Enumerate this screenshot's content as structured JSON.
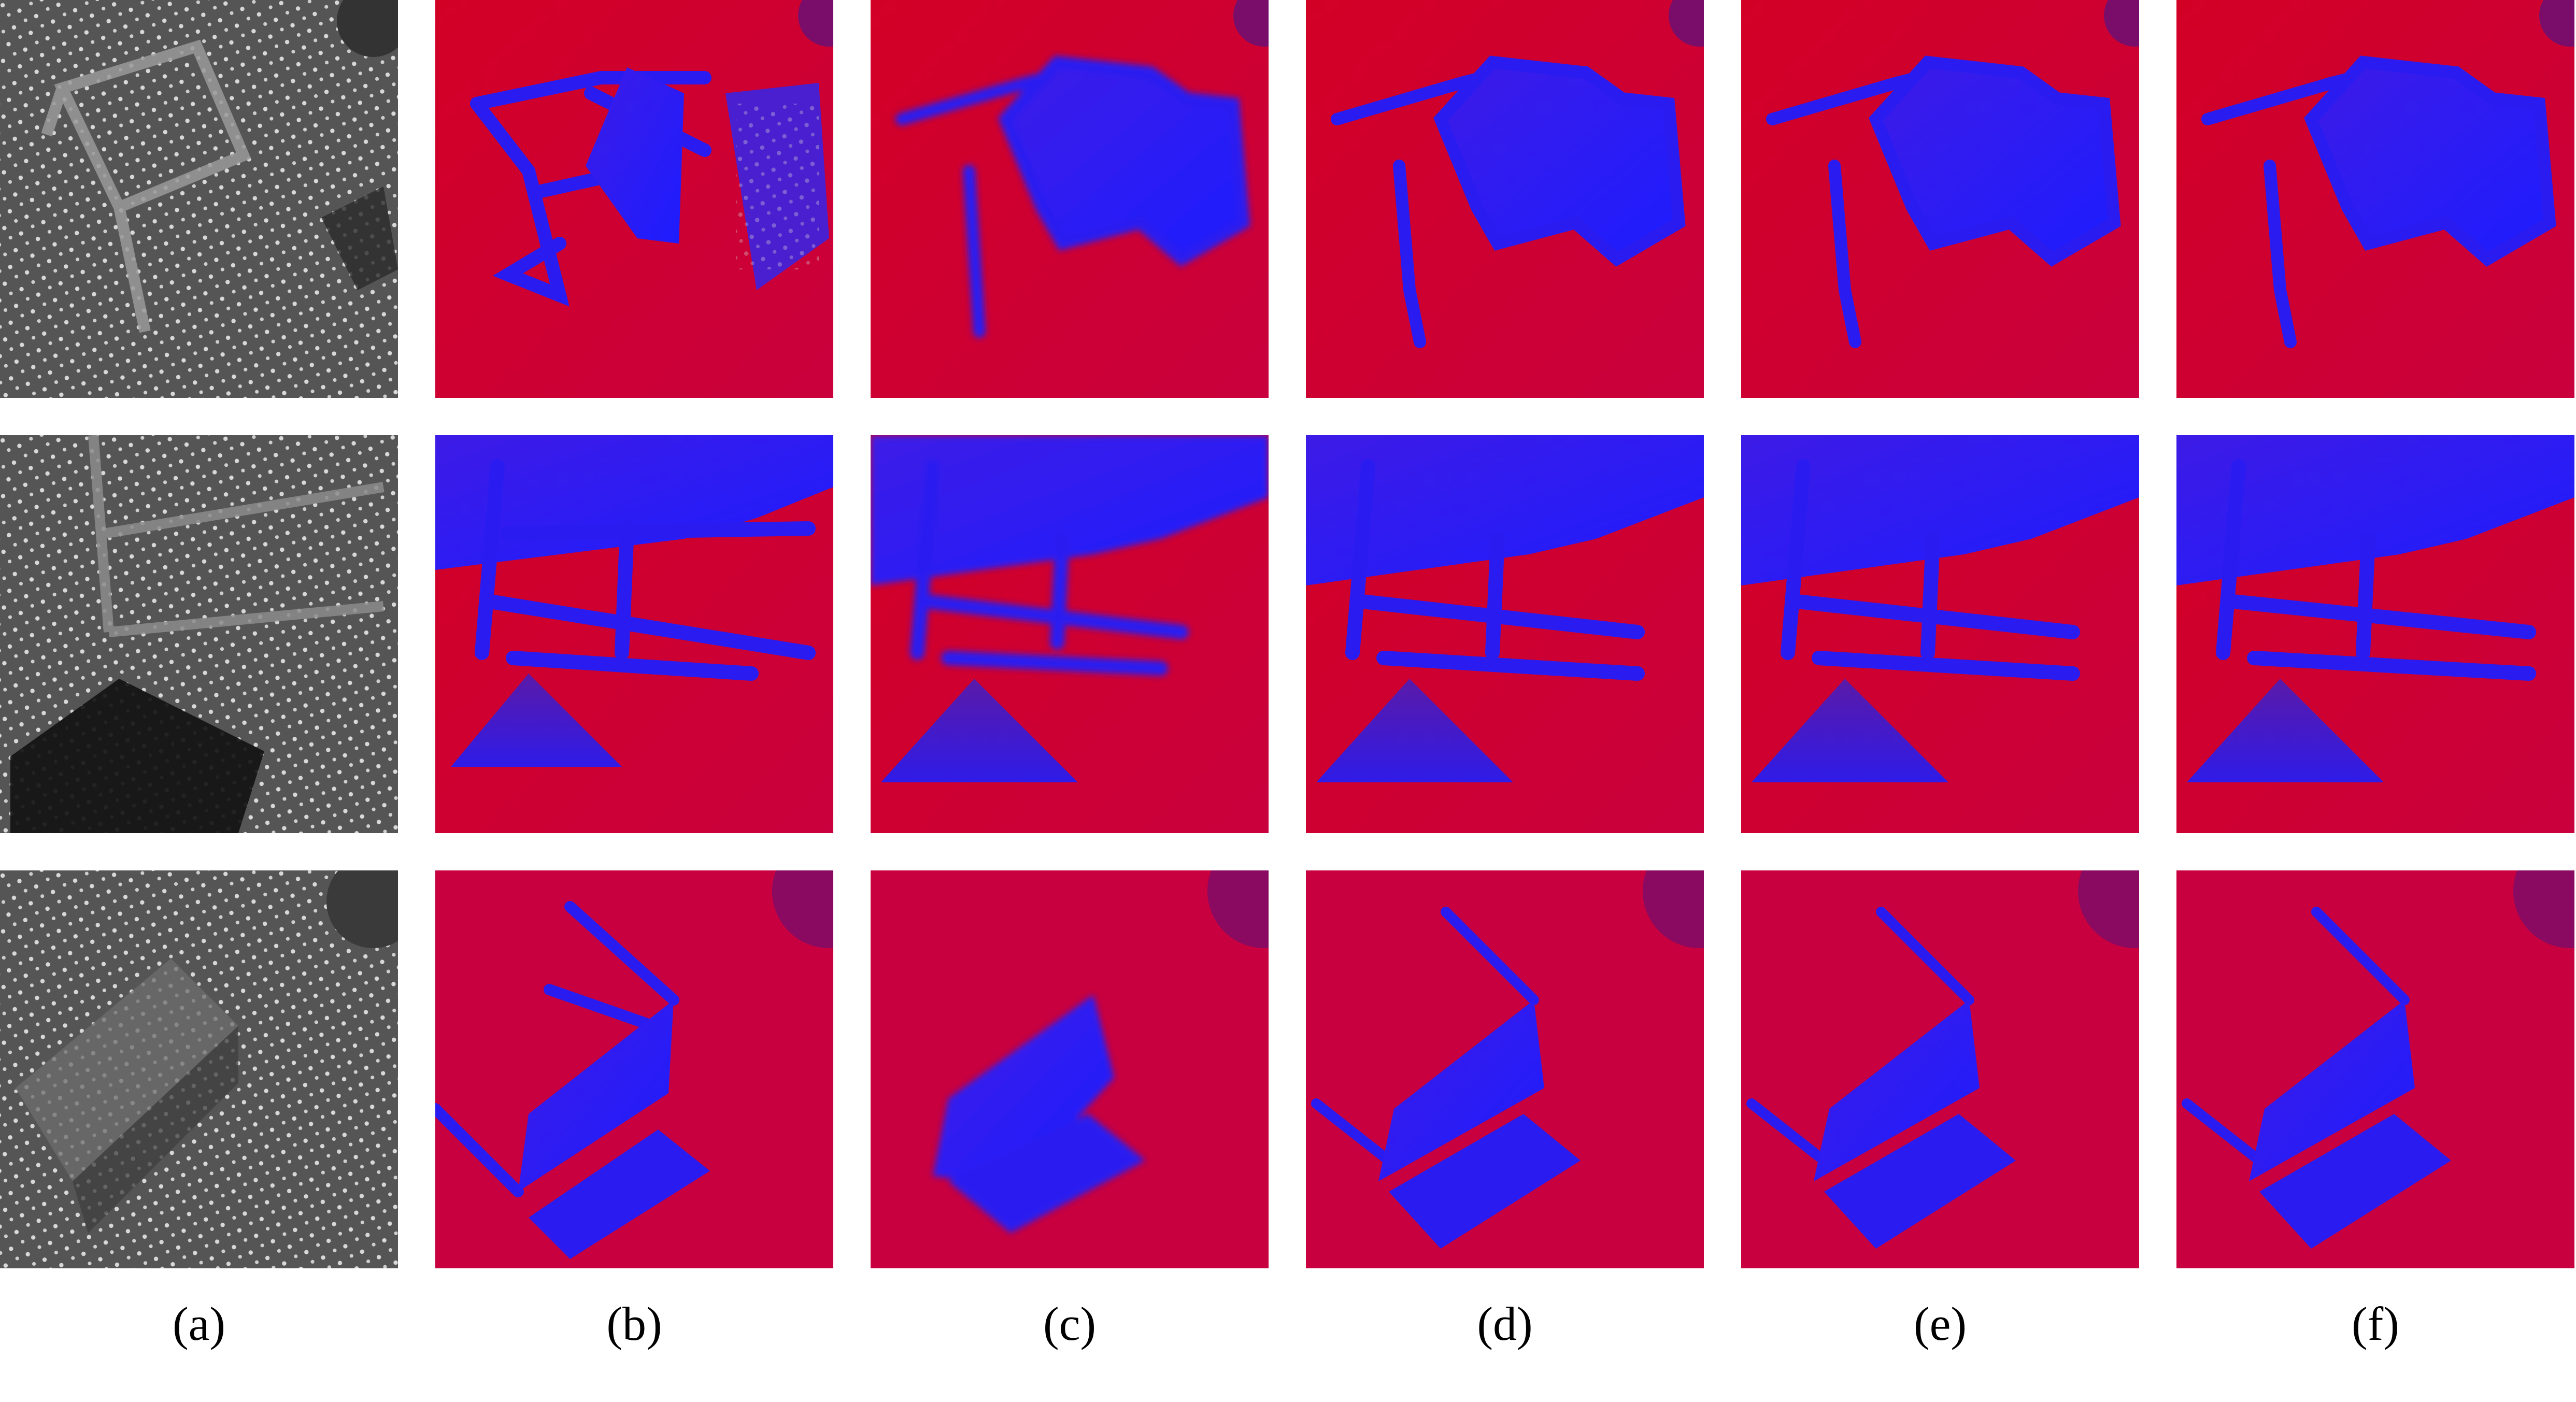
{
  "figure": {
    "captions": [
      "(a)",
      "(b)",
      "(c)",
      "(d)",
      "(e)",
      "(f)"
    ]
  },
  "colors": {
    "background_white": "#ffffff",
    "depth_far_red": "#d0002a",
    "depth_near_blue": "#1f1cff",
    "ir_gray": "#5a5a5a",
    "ir_dots": "#d8d8d8"
  },
  "icons": {
    "panel_a_type": "infrared-speckle-image",
    "panels_b_to_f_type": "depth-colormap-image"
  }
}
